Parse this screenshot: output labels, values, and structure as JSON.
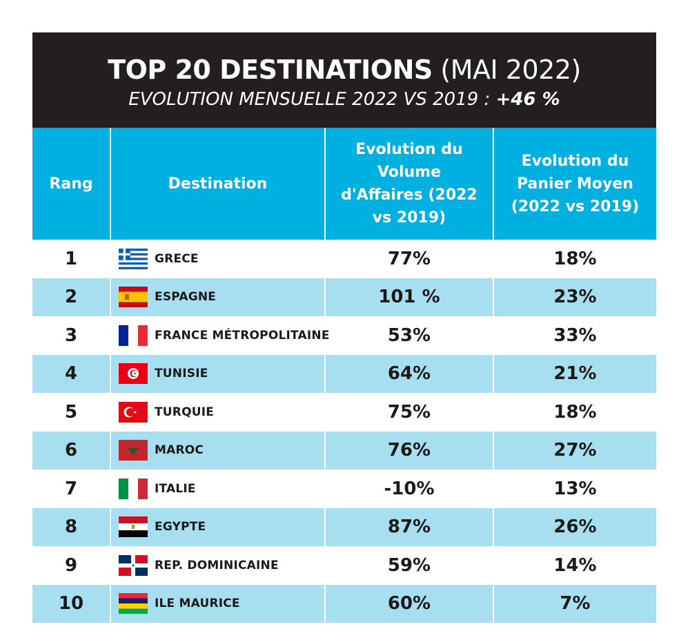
{
  "title": {
    "strong": "TOP 20 DESTINATIONS",
    "light": "(MAI 2022)",
    "subtitle_prefix": "EVOLUTION MENSUELLE 2022 VS 2019 :",
    "subtitle_value": "+46 %"
  },
  "headers": {
    "rank": "Rang",
    "destination": "Destination",
    "volume": "Evolution du Volume d'Affaires (2022 vs 2019)",
    "basket": "Evolution du Panier Moyen (2022 vs 2019)"
  },
  "chart_data": {
    "type": "table",
    "columns": [
      "Rang",
      "Destination",
      "Evolution du Volume d'Affaires (2022 vs 2019)",
      "Evolution du Panier Moyen (2022 vs 2019)"
    ],
    "rows": [
      {
        "rank": "1",
        "destination": "GRECE",
        "flag": "greece-flag-icon",
        "volume": "77%",
        "basket": "18%"
      },
      {
        "rank": "2",
        "destination": "ESPAGNE",
        "flag": "spain-flag-icon",
        "volume": "101 %",
        "basket": "23%"
      },
      {
        "rank": "3",
        "destination": "FRANCE MÉTROPOLITAINE",
        "flag": "france-flag-icon",
        "volume": "53%",
        "basket": "33%"
      },
      {
        "rank": "4",
        "destination": "TUNISIE",
        "flag": "tunisia-flag-icon",
        "volume": "64%",
        "basket": "21%"
      },
      {
        "rank": "5",
        "destination": "TURQUIE",
        "flag": "turkey-flag-icon",
        "volume": "75%",
        "basket": "18%"
      },
      {
        "rank": "6",
        "destination": "MAROC",
        "flag": "morocco-flag-icon",
        "volume": "76%",
        "basket": "27%"
      },
      {
        "rank": "7",
        "destination": "ITALIE",
        "flag": "italy-flag-icon",
        "volume": "-10%",
        "basket": "13%"
      },
      {
        "rank": "8",
        "destination": "EGYPTE",
        "flag": "egypt-flag-icon",
        "volume": "87%",
        "basket": "26%"
      },
      {
        "rank": "9",
        "destination": "REP. DOMINICAINE",
        "flag": "dominican-republic-flag-icon",
        "volume": "59%",
        "basket": "14%"
      },
      {
        "rank": "10",
        "destination": "ILE MAURICE",
        "flag": "mauritius-flag-icon",
        "volume": "60%",
        "basket": "7%"
      }
    ]
  },
  "colors": {
    "title_bg": "#231f20",
    "header_bg": "#00b0e0",
    "row_alt_bg": "#a7dff0"
  }
}
